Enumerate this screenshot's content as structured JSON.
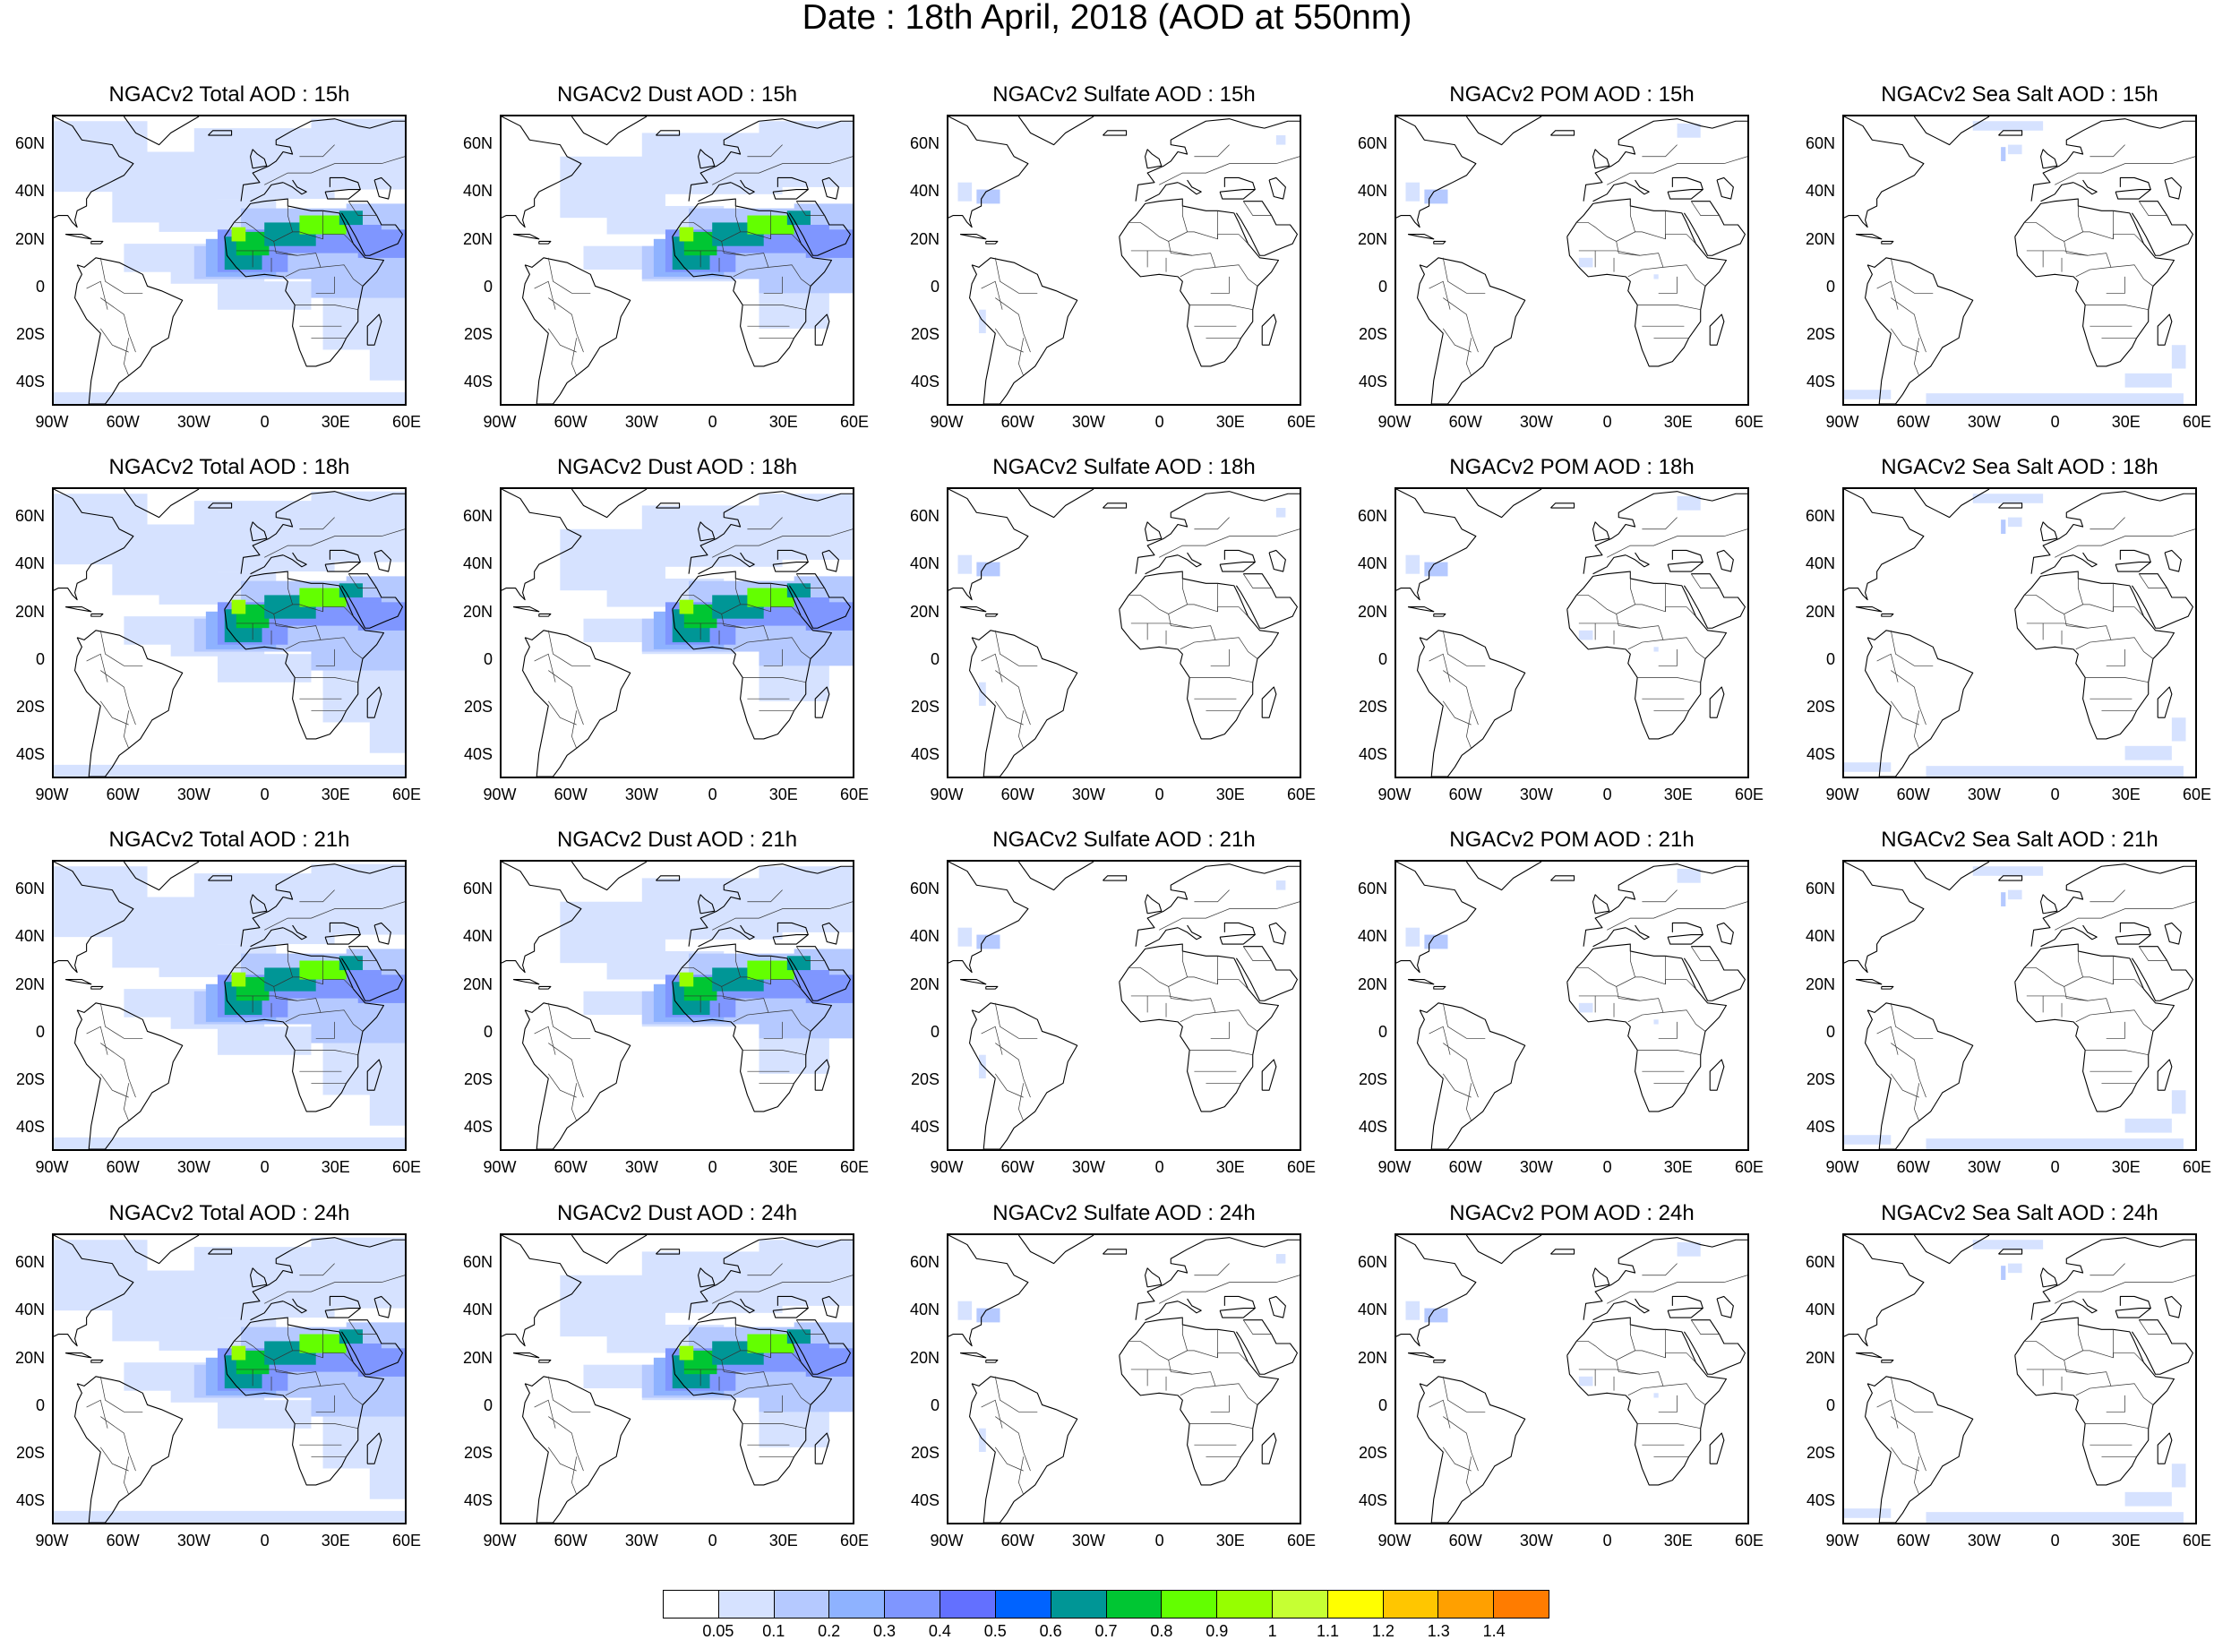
{
  "figure_title": "Date : 18th April, 2018 (AOD at 550nm)",
  "lat_labels": [
    "60N",
    "40N",
    "20N",
    "0",
    "20S",
    "40S"
  ],
  "lon_labels": [
    "90W",
    "60W",
    "30W",
    "0",
    "30E",
    "60E"
  ],
  "species": [
    {
      "key": "total",
      "name": "Total"
    },
    {
      "key": "dust",
      "name": "Dust"
    },
    {
      "key": "sulfate",
      "name": "Sulfate"
    },
    {
      "key": "pom",
      "name": "POM"
    },
    {
      "key": "seasalt",
      "name": "Sea Salt"
    }
  ],
  "panels": [
    {
      "title": "NGACv2 Total AOD : 15h",
      "species": "total",
      "hour": "15h"
    },
    {
      "title": "NGACv2 Dust AOD : 15h",
      "species": "dust",
      "hour": "15h"
    },
    {
      "title": "NGACv2 Sulfate AOD : 15h",
      "species": "sulfate",
      "hour": "15h"
    },
    {
      "title": "NGACv2 POM AOD : 15h",
      "species": "pom",
      "hour": "15h"
    },
    {
      "title": "NGACv2 Sea Salt AOD : 15h",
      "species": "seasalt",
      "hour": "15h"
    },
    {
      "title": "NGACv2 Total AOD : 18h",
      "species": "total",
      "hour": "18h"
    },
    {
      "title": "NGACv2 Dust AOD : 18h",
      "species": "dust",
      "hour": "18h"
    },
    {
      "title": "NGACv2 Sulfate AOD : 18h",
      "species": "sulfate",
      "hour": "18h"
    },
    {
      "title": "NGACv2 POM AOD : 18h",
      "species": "pom",
      "hour": "18h"
    },
    {
      "title": "NGACv2 Sea Salt AOD : 18h",
      "species": "seasalt",
      "hour": "18h"
    },
    {
      "title": "NGACv2 Total AOD : 21h",
      "species": "total",
      "hour": "21h"
    },
    {
      "title": "NGACv2 Dust AOD : 21h",
      "species": "dust",
      "hour": "21h"
    },
    {
      "title": "NGACv2 Sulfate AOD : 21h",
      "species": "sulfate",
      "hour": "21h"
    },
    {
      "title": "NGACv2 POM AOD : 21h",
      "species": "pom",
      "hour": "21h"
    },
    {
      "title": "NGACv2 Sea Salt AOD : 21h",
      "species": "seasalt",
      "hour": "21h"
    },
    {
      "title": "NGACv2 Total AOD : 24h",
      "species": "total",
      "hour": "24h"
    },
    {
      "title": "NGACv2 Dust AOD : 24h",
      "species": "dust",
      "hour": "24h"
    },
    {
      "title": "NGACv2 Sulfate AOD : 24h",
      "species": "sulfate",
      "hour": "24h"
    },
    {
      "title": "NGACv2 POM AOD : 24h",
      "species": "pom",
      "hour": "24h"
    },
    {
      "title": "NGACv2 Sea Salt  AOD : 24h",
      "species": "seasalt",
      "hour": "24h"
    }
  ],
  "colorbar": {
    "colors": [
      "#ffffff",
      "#d6e2ff",
      "#b5c9ff",
      "#8eb2ff",
      "#7f96ff",
      "#6370ff",
      "#0063ff",
      "#009696",
      "#00c633",
      "#63ff00",
      "#96ff00",
      "#c6ff33",
      "#ffff00",
      "#ffc600",
      "#ffa000",
      "#ff7c00",
      "#ff1900"
    ],
    "ticks": [
      "0.05",
      "0.1",
      "0.2",
      "0.3",
      "0.4",
      "0.5",
      "0.6",
      "0.7",
      "0.8",
      "0.9",
      "1",
      "1.1",
      "1.2",
      "1.3",
      "1.4"
    ]
  }
}
